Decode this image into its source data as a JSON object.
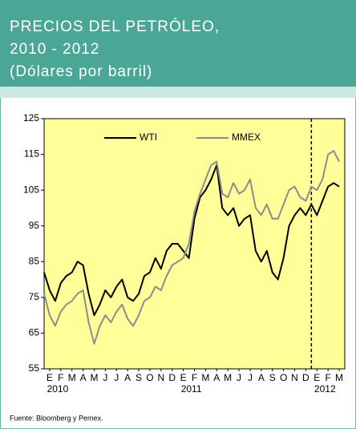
{
  "chart_data": {
    "type": "line",
    "title": [
      "PRECIOS DEL PETRÓLEO,",
      "2010 - 2012",
      "(Dólares por barril)"
    ],
    "source": "Fuente: Bloomberg y Pemex.",
    "x": [
      0,
      0.5,
      1,
      1.5,
      2,
      2.5,
      3,
      3.5,
      4,
      4.5,
      5,
      5.5,
      6,
      6.5,
      7,
      7.5,
      8,
      8.5,
      9,
      9.5,
      10,
      10.5,
      11,
      11.5,
      12,
      12.5,
      13,
      13.5,
      14,
      14.5,
      15,
      15.5,
      16,
      16.5,
      17,
      17.5,
      18,
      18.5,
      19,
      19.5,
      20,
      20.5,
      21,
      21.5,
      22,
      22.5,
      23,
      23.5,
      24,
      24.5,
      25,
      25.5,
      26,
      26.5
    ],
    "series": [
      {
        "name": "WTI",
        "color": "#000000",
        "values": [
          82,
          77,
          74,
          79,
          81,
          82,
          85,
          84,
          76,
          70,
          73,
          77,
          75,
          78,
          80,
          75,
          74,
          76,
          81,
          82,
          86,
          83,
          88,
          90,
          90,
          88,
          86,
          97,
          103,
          105,
          108,
          112,
          100,
          98,
          100,
          95,
          97,
          98,
          88,
          85,
          88,
          82,
          80,
          86,
          95,
          98,
          100,
          98,
          101,
          98,
          102,
          106,
          107,
          106
        ]
      },
      {
        "name": "MMEX",
        "color": "#8c8c8c",
        "values": [
          76,
          70,
          67,
          71,
          73,
          74,
          76,
          77,
          68,
          62,
          67,
          70,
          68,
          71,
          73,
          69,
          67,
          70,
          74,
          75,
          78,
          77,
          81,
          84,
          85,
          86,
          90,
          99,
          104,
          108,
          112,
          113,
          104,
          103,
          107,
          104,
          105,
          108,
          100,
          98,
          101,
          97,
          97,
          101,
          105,
          106,
          103,
          102,
          106,
          105,
          108,
          115,
          116,
          113
        ]
      }
    ],
    "xlim": [
      0,
      27
    ],
    "xticks": [
      {
        "value": 0.5,
        "label": "E"
      },
      {
        "value": 1.5,
        "label": "F"
      },
      {
        "value": 2.5,
        "label": "M"
      },
      {
        "value": 3.5,
        "label": "A"
      },
      {
        "value": 4.5,
        "label": "M"
      },
      {
        "value": 5.5,
        "label": "J"
      },
      {
        "value": 6.5,
        "label": "J"
      },
      {
        "value": 7.5,
        "label": "A"
      },
      {
        "value": 8.5,
        "label": "S"
      },
      {
        "value": 9.5,
        "label": "O"
      },
      {
        "value": 10.5,
        "label": "N"
      },
      {
        "value": 11.5,
        "label": "D"
      },
      {
        "value": 12.5,
        "label": "E"
      },
      {
        "value": 13.5,
        "label": "F"
      },
      {
        "value": 14.5,
        "label": "M"
      },
      {
        "value": 15.5,
        "label": "A"
      },
      {
        "value": 16.5,
        "label": "M"
      },
      {
        "value": 17.5,
        "label": "J"
      },
      {
        "value": 18.5,
        "label": "J"
      },
      {
        "value": 19.5,
        "label": "A"
      },
      {
        "value": 20.5,
        "label": "S"
      },
      {
        "value": 21.5,
        "label": "O"
      },
      {
        "value": 22.5,
        "label": "N"
      },
      {
        "value": 23.5,
        "label": "D"
      },
      {
        "value": 24.5,
        "label": "E"
      },
      {
        "value": 25.5,
        "label": "F"
      },
      {
        "value": 26.5,
        "label": "M"
      }
    ],
    "year_labels": [
      {
        "value": 0.5,
        "label": "2010"
      },
      {
        "value": 12.5,
        "label": "2011"
      },
      {
        "value": 24.5,
        "label": "2012"
      }
    ],
    "vline": 24,
    "ylim": [
      55,
      125
    ],
    "yticks": [
      55,
      65,
      75,
      85,
      95,
      105,
      115,
      125
    ],
    "plot_color": "#ffff99"
  }
}
